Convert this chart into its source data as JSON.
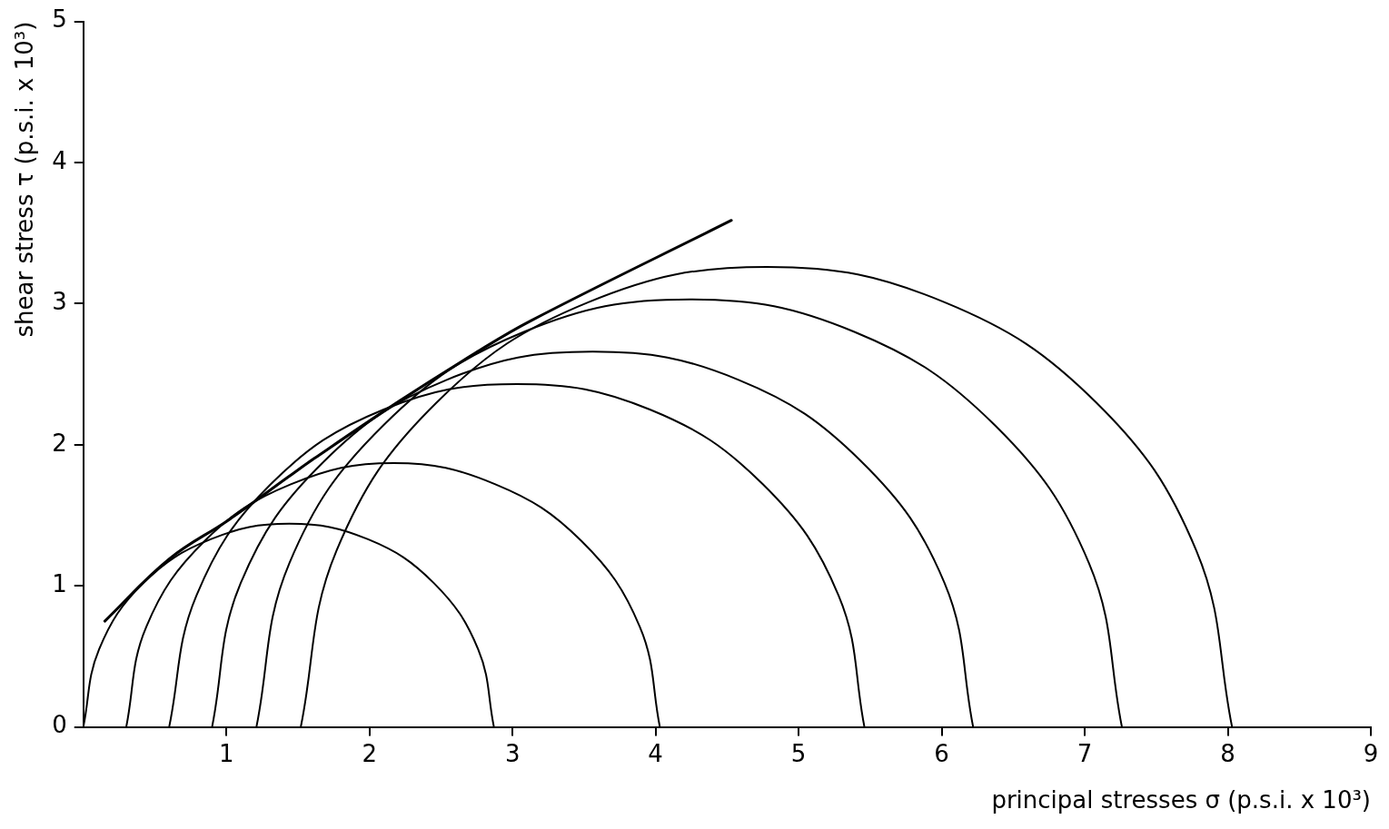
{
  "chart_data": {
    "type": "line",
    "xlabel": "principal stresses σ (p.s.i. x 10³)",
    "ylabel": "shear stress τ (p.s.i. x 10³)",
    "xlim": [
      0,
      9
    ],
    "xticks": [
      1,
      2,
      3,
      4,
      5,
      6,
      7,
      8,
      9
    ],
    "ylim": [
      0,
      5
    ],
    "yticks": [
      0,
      1,
      2,
      3,
      4,
      5
    ],
    "grid": false,
    "legend": false,
    "marker": "none",
    "line_style": "solid",
    "series": [
      {
        "color": "#000000",
        "x": [
          0,
          0.11,
          0.42,
          0.89,
          1.44,
          1.99,
          2.45,
          2.76,
          2.87
        ],
        "values": [
          0,
          0.55,
          1.02,
          1.33,
          1.44,
          1.33,
          1.02,
          0.55,
          0
        ]
      },
      {
        "color": "#000000",
        "x": [
          0.3,
          0.44,
          0.85,
          1.45,
          2.17,
          2.88,
          3.48,
          3.89,
          4.03
        ],
        "values": [
          0,
          0.71,
          1.32,
          1.72,
          1.87,
          1.72,
          1.32,
          0.71,
          0
        ]
      },
      {
        "color": "#000000",
        "x": [
          0.6,
          0.79,
          1.31,
          2.1,
          3.03,
          3.96,
          4.75,
          5.28,
          5.46
        ],
        "values": [
          0,
          0.93,
          1.72,
          2.25,
          2.43,
          2.25,
          1.72,
          0.93,
          0
        ]
      },
      {
        "color": "#000000",
        "x": [
          0.9,
          1.1,
          1.68,
          2.54,
          3.56,
          4.58,
          5.44,
          6.02,
          6.22
        ],
        "values": [
          0,
          1.02,
          1.88,
          2.46,
          2.66,
          2.46,
          1.88,
          1.02,
          0
        ]
      },
      {
        "color": "#000000",
        "x": [
          1.21,
          1.44,
          2.1,
          3.08,
          4.24,
          5.39,
          6.37,
          7.03,
          7.26
        ],
        "values": [
          0,
          1.16,
          2.14,
          2.8,
          3.03,
          2.8,
          2.14,
          1.16,
          0
        ]
      },
      {
        "color": "#000000",
        "x": [
          1.52,
          1.77,
          2.47,
          3.53,
          4.78,
          6.02,
          7.08,
          7.78,
          8.03
        ],
        "values": [
          0,
          1.25,
          2.3,
          3.01,
          3.26,
          3.01,
          2.3,
          1.25,
          0
        ]
      },
      {
        "color": "#000000",
        "x": [
          0.15,
          0.6,
          1.02,
          1.43,
          1.61,
          2.21,
          2.74,
          3.13,
          4.53
        ],
        "values": [
          0.75,
          1.19,
          1.47,
          1.77,
          1.9,
          2.31,
          2.65,
          2.88,
          3.59
        ]
      }
    ]
  }
}
